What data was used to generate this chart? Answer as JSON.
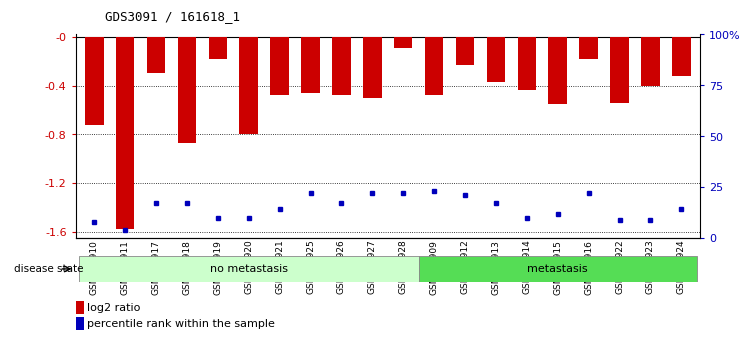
{
  "title": "GDS3091 / 161618_1",
  "samples": [
    "GSM114910",
    "GSM114911",
    "GSM114917",
    "GSM114918",
    "GSM114919",
    "GSM114920",
    "GSM114921",
    "GSM114925",
    "GSM114926",
    "GSM114927",
    "GSM114928",
    "GSM114909",
    "GSM114912",
    "GSM114913",
    "GSM114914",
    "GSM114915",
    "GSM114916",
    "GSM114922",
    "GSM114923",
    "GSM114924"
  ],
  "log2_values": [
    -0.72,
    -1.58,
    -0.3,
    -0.87,
    -0.18,
    -0.8,
    -0.48,
    -0.46,
    -0.48,
    -0.5,
    -0.09,
    -0.48,
    -0.23,
    -0.37,
    -0.44,
    -0.55,
    -0.18,
    -0.54,
    -0.4,
    -0.32
  ],
  "percentile_values": [
    8,
    4,
    17,
    17,
    10,
    10,
    14,
    22,
    17,
    22,
    22,
    23,
    21,
    17,
    10,
    12,
    22,
    9,
    9,
    14
  ],
  "no_metastasis_count": 11,
  "metastasis_count": 9,
  "bar_color": "#CC0000",
  "dot_color": "#0000BB",
  "bar_width": 0.6,
  "ylim_left": [
    -1.65,
    0.02
  ],
  "ylim_right": [
    0,
    100
  ],
  "yticks_left": [
    0.0,
    -0.4,
    -0.8,
    -1.2,
    -1.6
  ],
  "yticks_right": [
    0,
    25,
    50,
    75,
    100
  ],
  "no_metastasis_color": "#ccffcc",
  "metastasis_color": "#55dd55",
  "label_fontsize": 6.5,
  "title_fontsize": 9,
  "axis_label_color_left": "#CC0000",
  "axis_label_color_right": "#0000BB",
  "right_tick_labels": [
    "0",
    "25",
    "50",
    "75",
    "100%"
  ]
}
